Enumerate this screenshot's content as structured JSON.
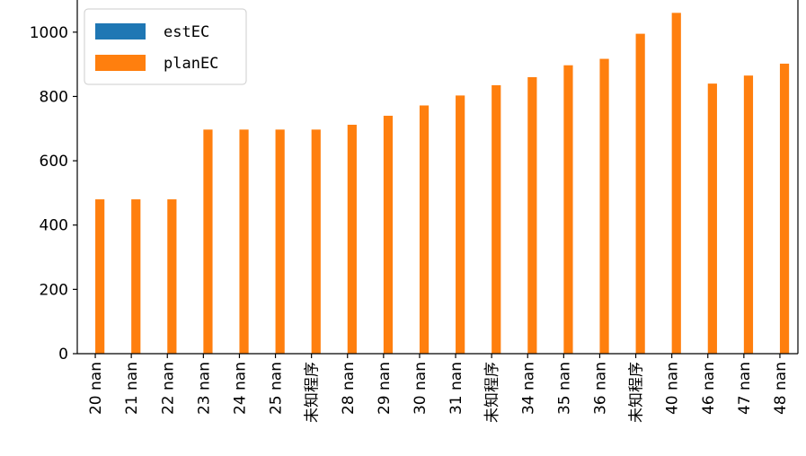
{
  "chart_data": {
    "type": "bar",
    "categories": [
      "20 nan",
      "21 nan",
      "22 nan",
      "23 nan",
      "24 nan",
      "25 nan",
      "未知程序",
      "28 nan",
      "29 nan",
      "30 nan",
      "31 nan",
      "未知程序",
      "34 nan",
      "35 nan",
      "36 nan",
      "未知程序",
      "40 nan",
      "46 nan",
      "47 nan",
      "48 nan"
    ],
    "series": [
      {
        "name": "estEC",
        "color": "#1f77b4",
        "values": [
          null,
          null,
          null,
          null,
          null,
          null,
          null,
          null,
          null,
          null,
          null,
          null,
          null,
          null,
          null,
          null,
          null,
          null,
          null,
          null
        ]
      },
      {
        "name": "planEC",
        "color": "#ff7f0e",
        "values": [
          480,
          480,
          480,
          697,
          697,
          697,
          697,
          712,
          740,
          772,
          803,
          835,
          860,
          897,
          917,
          995,
          1060,
          840,
          865,
          902
        ]
      }
    ],
    "y_ticks": [
      0,
      200,
      400,
      600,
      800,
      1000
    ],
    "ylim": [
      0,
      1100
    ],
    "legend_position": "upper-left",
    "grid": false,
    "x_tick_rotation": "vertical"
  }
}
